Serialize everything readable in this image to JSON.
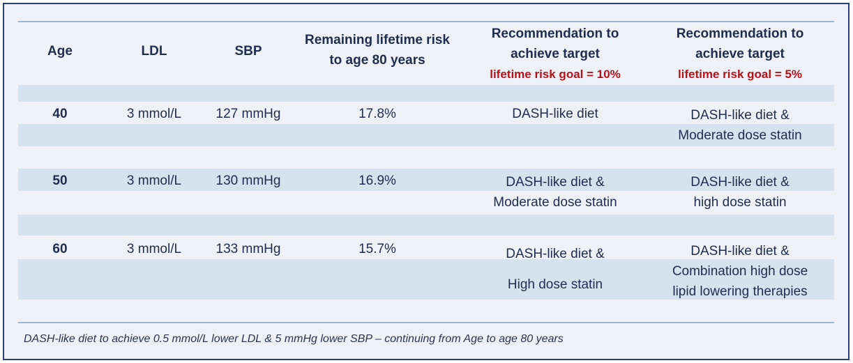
{
  "headers": {
    "age": "Age",
    "ldl": "LDL",
    "sbp": "SBP",
    "risk_line1": "Remaining lifetime risk",
    "risk_line2": "to age 80 years",
    "rec10_line1": "Recommendation to",
    "rec10_line2": "achieve target",
    "rec10_goal": "lifetime risk goal = 10%",
    "rec5_line1": "Recommendation to",
    "rec5_line2": "achieve target",
    "rec5_goal": "lifetime risk goal = 5%"
  },
  "rows": [
    {
      "age": "40",
      "ldl": "3 mmol/L",
      "sbp": "127 mmHg",
      "risk": "17.8%",
      "rec10": [
        "DASH-like diet"
      ],
      "rec5": [
        "DASH-like diet &",
        "Moderate dose statin"
      ]
    },
    {
      "age": "50",
      "ldl": "3 mmol/L",
      "sbp": "130 mmHg",
      "risk": "16.9%",
      "rec10": [
        "DASH-like diet &",
        "Moderate dose statin"
      ],
      "rec5": [
        "DASH-like diet &",
        "high dose statin"
      ]
    },
    {
      "age": "60",
      "ldl": "3 mmol/L",
      "sbp": "133 mmHg",
      "risk": "15.7%",
      "rec10": [
        "DASH-like diet &",
        "High dose statin"
      ],
      "rec5": [
        "DASH-like diet &",
        "Combination high dose",
        "lipid lowering therapies"
      ]
    }
  ],
  "footnote": "DASH-like diet to achieve 0.5 mmol/L lower LDL & 5 mmHg lower SBP – continuing from Age to age 80 years",
  "colors": {
    "frame": "#2c3f7a",
    "band": "#d6e2ee",
    "goal_red": "#b5121b",
    "text": "#1f2d4e"
  }
}
